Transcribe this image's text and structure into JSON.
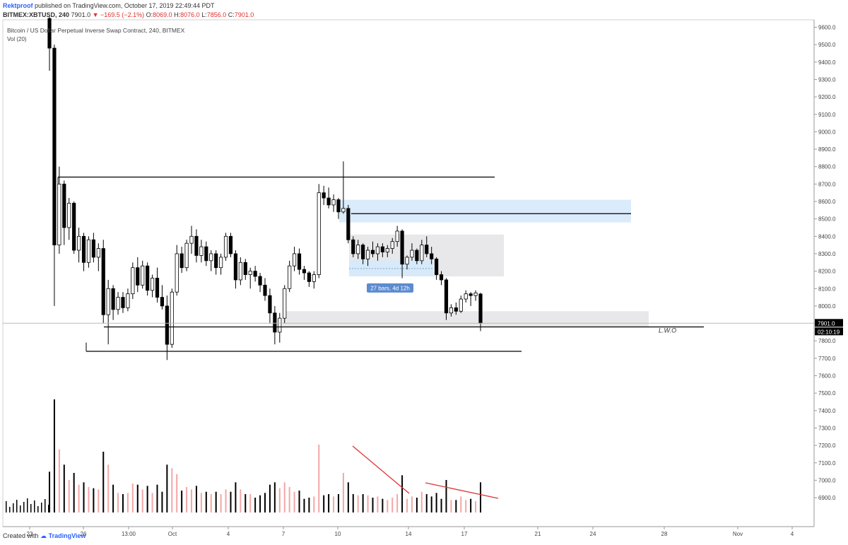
{
  "header": {
    "author": "Rektproof",
    "published": "published on TradingView.com, October 17, 2019 22:49:44 PDT",
    "symbol": "BITMEX:XBTUSD, 240",
    "last": "7901.0",
    "change": "−169.5 (−2.1%)",
    "o_label": "O:",
    "o_value": "8069.0",
    "h_label": "H:",
    "h_value": "8076.0",
    "l_label": "L:",
    "l_value": "7856.0",
    "c_label": "C:",
    "c_value": "7901.0"
  },
  "footer": {
    "created_with": "Created with",
    "brand": "TradingView"
  },
  "colors": {
    "bull": "#ffffff",
    "bear": "#000000",
    "vol": "#000000",
    "vol_up": "#f4a6a6",
    "red_line": "#e03131",
    "blue_zone": "#d6e9fb",
    "grey_zone": "#e6e6e8",
    "price_tag": "#000000",
    "timer_tag": "#000000"
  },
  "chart_data": {
    "type": "candlestick",
    "title": "Bitcoin / US Dollar Perpetual Inverse Swap Contract, 240, BITMEX",
    "indicator": "Vol (20)",
    "ylim": [
      6800,
      9700
    ],
    "y_ticks": [
      "9600.0",
      "9500.0",
      "9400.0",
      "9300.0",
      "9200.0",
      "9100.0",
      "9000.0",
      "8900.0",
      "8800.0",
      "8700.0",
      "8600.0",
      "8500.0",
      "8400.0",
      "8300.0",
      "8200.0",
      "8100.0",
      "8000.0",
      "7900.0",
      "7800.0",
      "7700.0",
      "7600.0",
      "7500.0",
      "7400.0",
      "7300.0",
      "7200.0",
      "7100.0",
      "7000.0",
      "6900.0"
    ],
    "x_ticks": [
      "23",
      "26",
      "13:00",
      "Oct",
      "4",
      "7",
      "10",
      "14",
      "17",
      "21",
      "24",
      "28",
      "Nov",
      "4"
    ],
    "last_price": "7901.0",
    "countdown": "02:10:19",
    "annotations": {
      "lwo": "L.W.O",
      "bars_range": "27 bars, 4d 12h"
    },
    "levels": [
      {
        "price": 8740
      },
      {
        "price": 8530
      },
      {
        "price": 7880
      },
      {
        "price": 7740
      }
    ],
    "zones": [
      {
        "top": 8610,
        "bottom": 8480
      },
      {
        "top": 8410,
        "bottom": 8170
      },
      {
        "top": 8265,
        "bottom": 8170
      },
      {
        "top": 7970,
        "bottom": 7880
      }
    ],
    "volume_trendlines": 2,
    "candles": [
      [
        9650,
        9660,
        9350,
        9480
      ],
      [
        9480,
        9500,
        8000,
        8350
      ],
      [
        8350,
        8800,
        8300,
        8700
      ],
      [
        8700,
        8720,
        8350,
        8450
      ],
      [
        8450,
        8620,
        8380,
        8590
      ],
      [
        8590,
        8600,
        8300,
        8320
      ],
      [
        8320,
        8450,
        8250,
        8400
      ],
      [
        8400,
        8420,
        8200,
        8250
      ],
      [
        8250,
        8400,
        8220,
        8380
      ],
      [
        8380,
        8420,
        8250,
        8280
      ],
      [
        8280,
        8360,
        8200,
        8330
      ],
      [
        8330,
        8380,
        7900,
        7950
      ],
      [
        7950,
        8150,
        7780,
        8100
      ],
      [
        8100,
        8120,
        7920,
        7980
      ],
      [
        7980,
        8080,
        7950,
        8050
      ],
      [
        8050,
        8080,
        7960,
        7990
      ],
      [
        7990,
        8100,
        7970,
        8070
      ],
      [
        8070,
        8250,
        8040,
        8220
      ],
      [
        8220,
        8280,
        8080,
        8120
      ],
      [
        8120,
        8260,
        8100,
        8230
      ],
      [
        8230,
        8250,
        8060,
        8090
      ],
      [
        8090,
        8180,
        8050,
        8160
      ],
      [
        8160,
        8220,
        8020,
        8050
      ],
      [
        8050,
        8120,
        7980,
        8000
      ],
      [
        8000,
        8060,
        7690,
        7780
      ],
      [
        7780,
        8100,
        7760,
        8080
      ],
      [
        8080,
        8350,
        8060,
        8300
      ],
      [
        8300,
        8340,
        8190,
        8220
      ],
      [
        8220,
        8380,
        8200,
        8360
      ],
      [
        8360,
        8460,
        8300,
        8400
      ],
      [
        8400,
        8440,
        8250,
        8290
      ],
      [
        8290,
        8380,
        8250,
        8340
      ],
      [
        8340,
        8370,
        8230,
        8260
      ],
      [
        8260,
        8320,
        8200,
        8300
      ],
      [
        8300,
        8320,
        8180,
        8220
      ],
      [
        8220,
        8300,
        8180,
        8280
      ],
      [
        8280,
        8420,
        8260,
        8400
      ],
      [
        8400,
        8420,
        8280,
        8300
      ],
      [
        8300,
        8320,
        8100,
        8150
      ],
      [
        8150,
        8280,
        8120,
        8250
      ],
      [
        8250,
        8270,
        8150,
        8180
      ],
      [
        8180,
        8220,
        8100,
        8200
      ],
      [
        8200,
        8230,
        8140,
        8170
      ],
      [
        8170,
        8190,
        8080,
        8120
      ],
      [
        8120,
        8160,
        8030,
        8060
      ],
      [
        8060,
        8100,
        7900,
        7960
      ],
      [
        7960,
        8000,
        7780,
        7850
      ],
      [
        7850,
        7960,
        7790,
        7930
      ],
      [
        7930,
        8120,
        7900,
        8100
      ],
      [
        8100,
        8260,
        8080,
        8230
      ],
      [
        8230,
        8340,
        8200,
        8300
      ],
      [
        8300,
        8330,
        8180,
        8210
      ],
      [
        8210,
        8230,
        8150,
        8190
      ],
      [
        8190,
        8200,
        8110,
        8140
      ],
      [
        8140,
        8200,
        8100,
        8180
      ],
      [
        8180,
        8700,
        8160,
        8650
      ],
      [
        8650,
        8690,
        8580,
        8620
      ],
      [
        8620,
        8680,
        8560,
        8580
      ],
      [
        8580,
        8640,
        8540,
        8610
      ],
      [
        8610,
        8620,
        8500,
        8540
      ],
      [
        8540,
        8830,
        8530,
        8560
      ],
      [
        8560,
        8580,
        8360,
        8380
      ],
      [
        8380,
        8400,
        8280,
        8300
      ],
      [
        8300,
        8380,
        8270,
        8350
      ],
      [
        8350,
        8360,
        8240,
        8270
      ],
      [
        8270,
        8340,
        8230,
        8320
      ],
      [
        8320,
        8370,
        8280,
        8300
      ],
      [
        8300,
        8360,
        8260,
        8340
      ],
      [
        8340,
        8360,
        8280,
        8310
      ],
      [
        8310,
        8350,
        8280,
        8330
      ],
      [
        8330,
        8390,
        8300,
        8370
      ],
      [
        8370,
        8460,
        8340,
        8430
      ],
      [
        8430,
        8440,
        8160,
        8240
      ],
      [
        8240,
        8290,
        8210,
        8280
      ],
      [
        8280,
        8360,
        8260,
        8320
      ],
      [
        8320,
        8330,
        8240,
        8260
      ],
      [
        8260,
        8380,
        8240,
        8350
      ],
      [
        8350,
        8400,
        8280,
        8300
      ],
      [
        8300,
        8340,
        8240,
        8270
      ],
      [
        8270,
        8280,
        8150,
        8180
      ],
      [
        8180,
        8200,
        8120,
        8150
      ],
      [
        8150,
        8160,
        7920,
        7960
      ],
      [
        7960,
        8010,
        7940,
        7990
      ],
      [
        7990,
        8020,
        7950,
        7970
      ],
      [
        7970,
        8060,
        7960,
        8040
      ],
      [
        8040,
        8090,
        8020,
        8070
      ],
      [
        8070,
        8080,
        8000,
        8060
      ],
      [
        8060,
        8090,
        8030,
        8075
      ],
      [
        8069,
        8076,
        7856,
        7901
      ]
    ]
  }
}
